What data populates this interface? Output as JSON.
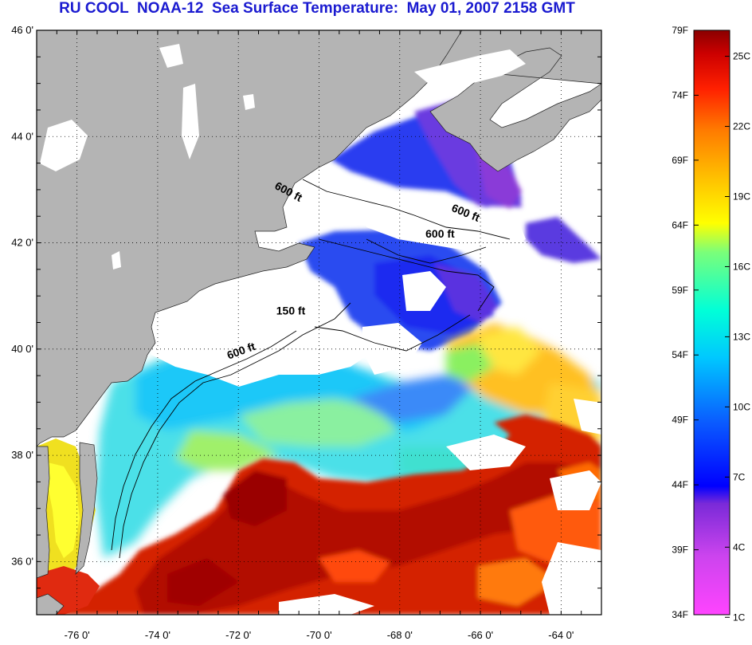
{
  "title": "RU COOL  NOAA-12  Sea Surface Temperature:  May 01, 2007 2158 GMT",
  "latitude_labels": [
    "46 0'",
    "44 0'",
    "42 0'",
    "40 0'",
    "38 0'",
    "36 0'"
  ],
  "longitude_labels": [
    "-76 0'",
    "-74 0'",
    "-72 0'",
    "-70 0'",
    "-68 0'",
    "-66 0'",
    "-64 0'"
  ],
  "latitudes": [
    46,
    44,
    42,
    40,
    38,
    36
  ],
  "longitudes": [
    -76,
    -74,
    -72,
    -70,
    -68,
    -66,
    -64
  ],
  "map_extent": {
    "lon_min": -77,
    "lon_max": -63,
    "lat_min": 35,
    "lat_max": 46
  },
  "contour_labels": [
    {
      "text": "600 ft",
      "lon": -70.8,
      "lat": 42.9,
      "angle": 28
    },
    {
      "text": "600 ft",
      "lon": -66.4,
      "lat": 42.5,
      "angle": 22
    },
    {
      "text": "600 ft",
      "lon": -67.0,
      "lat": 42.1,
      "angle": 0
    },
    {
      "text": "150 ft",
      "lon": -70.7,
      "lat": 40.65,
      "angle": 0
    },
    {
      "text": "600 ft",
      "lon": -71.9,
      "lat": 39.9,
      "angle": -20
    }
  ],
  "colorbar": {
    "fahrenheit_labels": [
      "79F",
      "74F",
      "69F",
      "64F",
      "59F",
      "54F",
      "49F",
      "44F",
      "39F",
      "34F"
    ],
    "fahrenheit_values": [
      79,
      74,
      69,
      64,
      59,
      54,
      49,
      44,
      39,
      34
    ],
    "celsius_labels": [
      "25C",
      "22C",
      "19C",
      "16C",
      "13C",
      "10C",
      "7C",
      "4C",
      "1C"
    ],
    "celsius_values": [
      25,
      22,
      19,
      16,
      13,
      10,
      7,
      4,
      1
    ],
    "range_f": [
      34,
      79
    ],
    "colors": [
      "#ff44ff",
      "#cc44ee",
      "#7a2ad8",
      "#0000ff",
      "#0a5cff",
      "#00c8ff",
      "#00ffd8",
      "#7aff7a",
      "#ffff00",
      "#ffbe00",
      "#ff7a00",
      "#ff2000",
      "#cc0000",
      "#8a0000"
    ]
  },
  "colors": {
    "land": "#b4b4b4",
    "cloud": "#ffffff",
    "title": "#1a1ad0",
    "gulf_stream": "#d42000",
    "shelf_water": "#4ce0e8",
    "gulf_of_maine": "#2a3cf0"
  }
}
